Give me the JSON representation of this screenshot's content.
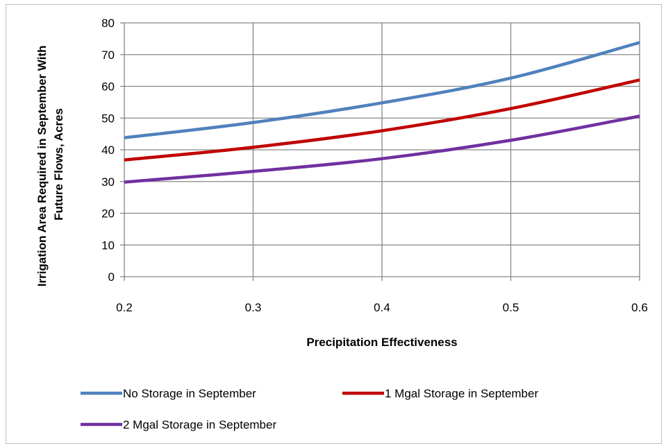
{
  "chart_data": {
    "type": "line",
    "title": "",
    "xlabel": "Precipitation Effectiveness",
    "ylabel": "Irrigation Area Required in September With Future Flows, Acres",
    "ylabel_lines": [
      "Irrigation Area Required in September With",
      "Future Flows, Acres"
    ],
    "x": [
      0.2,
      0.3,
      0.4,
      0.5,
      0.6
    ],
    "x_ticks": [
      "0.2",
      "0.3",
      "0.4",
      "0.5",
      "0.6"
    ],
    "y_ticks": [
      "0",
      "10",
      "20",
      "30",
      "40",
      "50",
      "60",
      "70",
      "80"
    ],
    "xlim": [
      0.2,
      0.6
    ],
    "ylim": [
      0,
      80
    ],
    "grid": true,
    "legend_position": "bottom",
    "series": [
      {
        "name": "No Storage in September",
        "color": "#4f81bd",
        "values": [
          43.8,
          48.6,
          54.8,
          62.6,
          73.8
        ]
      },
      {
        "name": "1 Mgal Storage in September",
        "color": "#c00000",
        "values": [
          36.8,
          40.8,
          46.0,
          53.0,
          62.0
        ]
      },
      {
        "name": "2 Mgal Storage in September",
        "color": "#7030a0",
        "values": [
          29.8,
          33.2,
          37.2,
          43.0,
          50.6
        ]
      }
    ]
  }
}
